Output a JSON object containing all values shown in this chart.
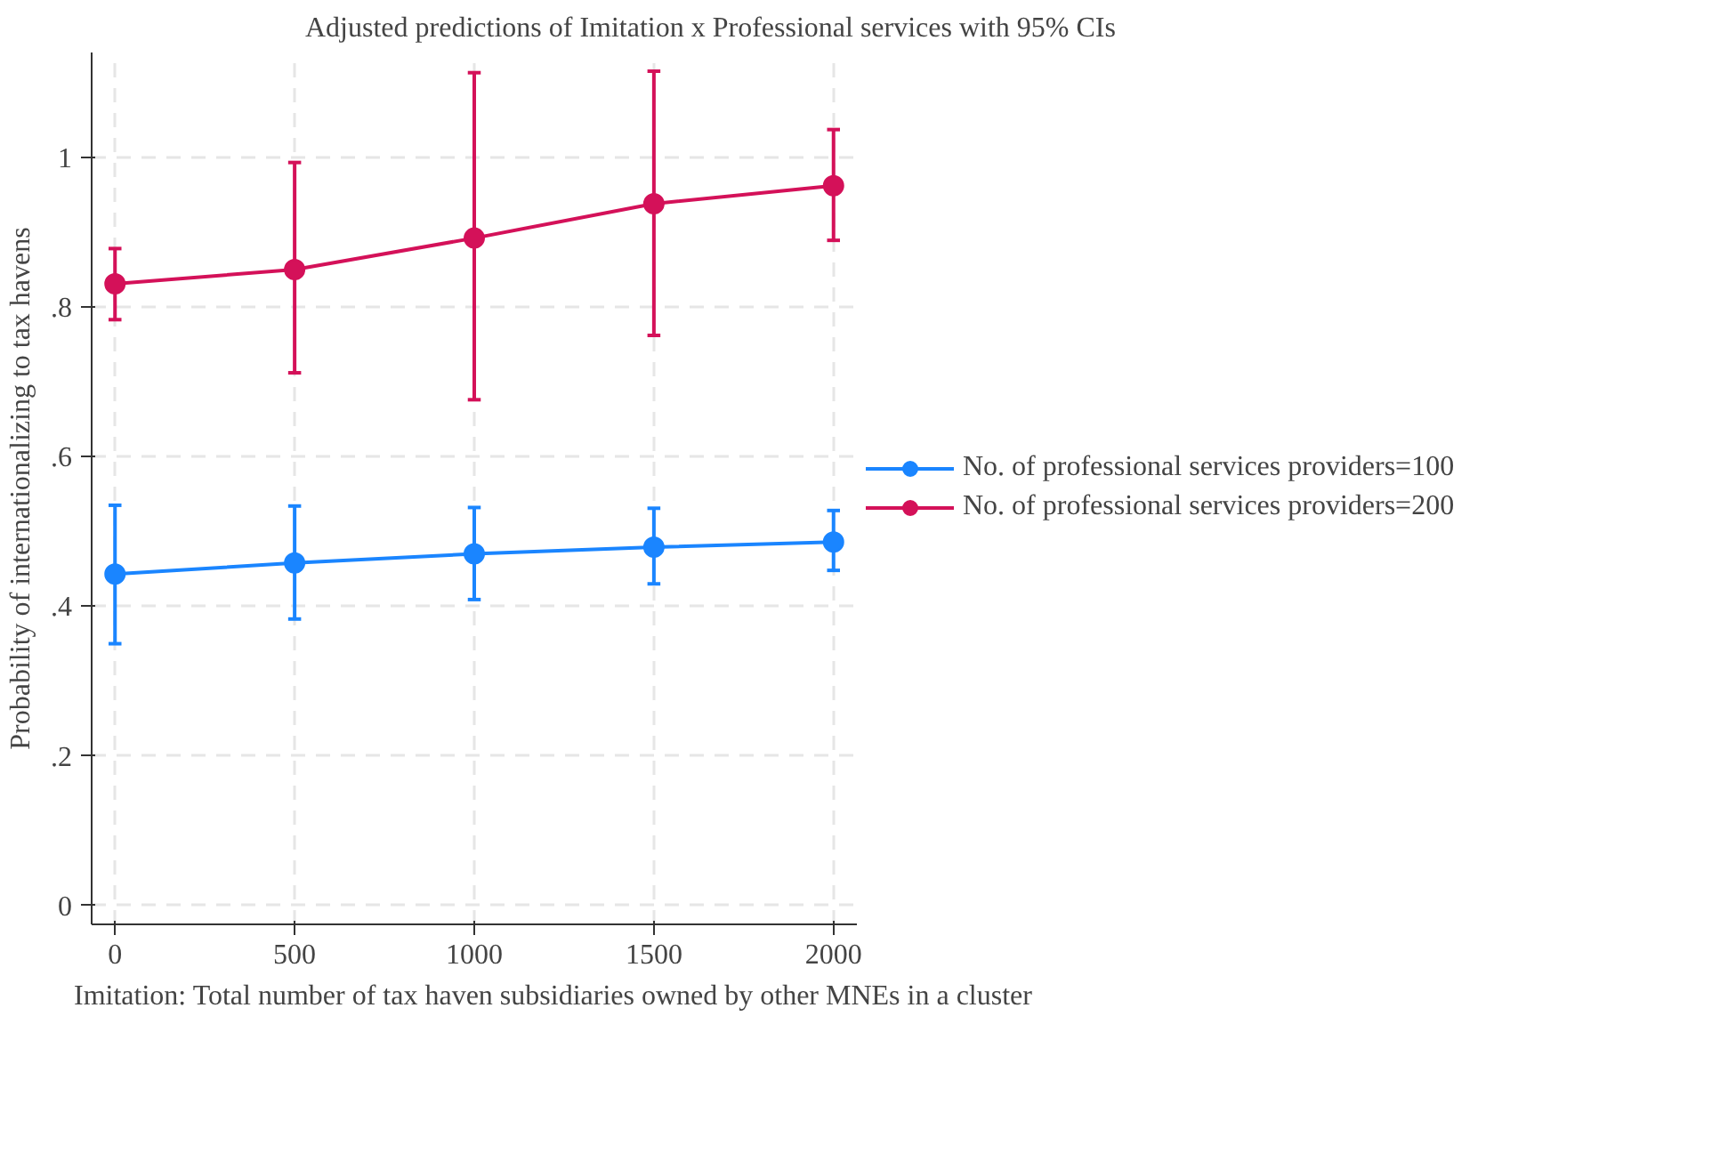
{
  "chart_data": {
    "type": "line",
    "title": "Adjusted predictions of Imitation x Professional services with 95% CIs",
    "xlabel": "Imitation: Total number of tax haven subsidiaries owned by other MNEs in a cluster",
    "ylabel": "Probability of internationalizing to tax havens",
    "x": [
      0,
      500,
      1000,
      1500,
      2000
    ],
    "series": [
      {
        "name": "No. of professional services providers=100",
        "color": "#1a85ff",
        "values": [
          0.443,
          0.458,
          0.47,
          0.479,
          0.486
        ],
        "errors": [
          [
            0.35,
            0.535
          ],
          [
            0.383,
            0.534
          ],
          [
            0.409,
            0.532
          ],
          [
            0.43,
            0.531
          ],
          [
            0.448,
            0.528
          ]
        ]
      },
      {
        "name": "No. of professional services providers=200",
        "color": "#d41159",
        "values": [
          0.831,
          0.85,
          0.892,
          0.938,
          0.962
        ],
        "errors": [
          [
            0.783,
            0.878
          ],
          [
            0.712,
            0.993
          ],
          [
            0.676,
            1.113
          ],
          [
            0.762,
            1.115
          ],
          [
            0.889,
            1.037
          ]
        ]
      }
    ],
    "xlim": [
      -65,
      2065
    ],
    "ylim": [
      -0.025,
      1.14
    ],
    "xticks": [
      0,
      500,
      1000,
      1500,
      2000
    ],
    "yticks": [
      {
        "value": 0,
        "label": "0"
      },
      {
        "value": 0.2,
        "label": ".2"
      },
      {
        "value": 0.4,
        "label": ".4"
      },
      {
        "value": 0.6,
        "label": ".6"
      },
      {
        "value": 0.8,
        "label": ".8"
      },
      {
        "value": 1,
        "label": "1"
      }
    ],
    "grid": true,
    "legend": "right",
    "marker": "circle",
    "line_style": "solid"
  }
}
